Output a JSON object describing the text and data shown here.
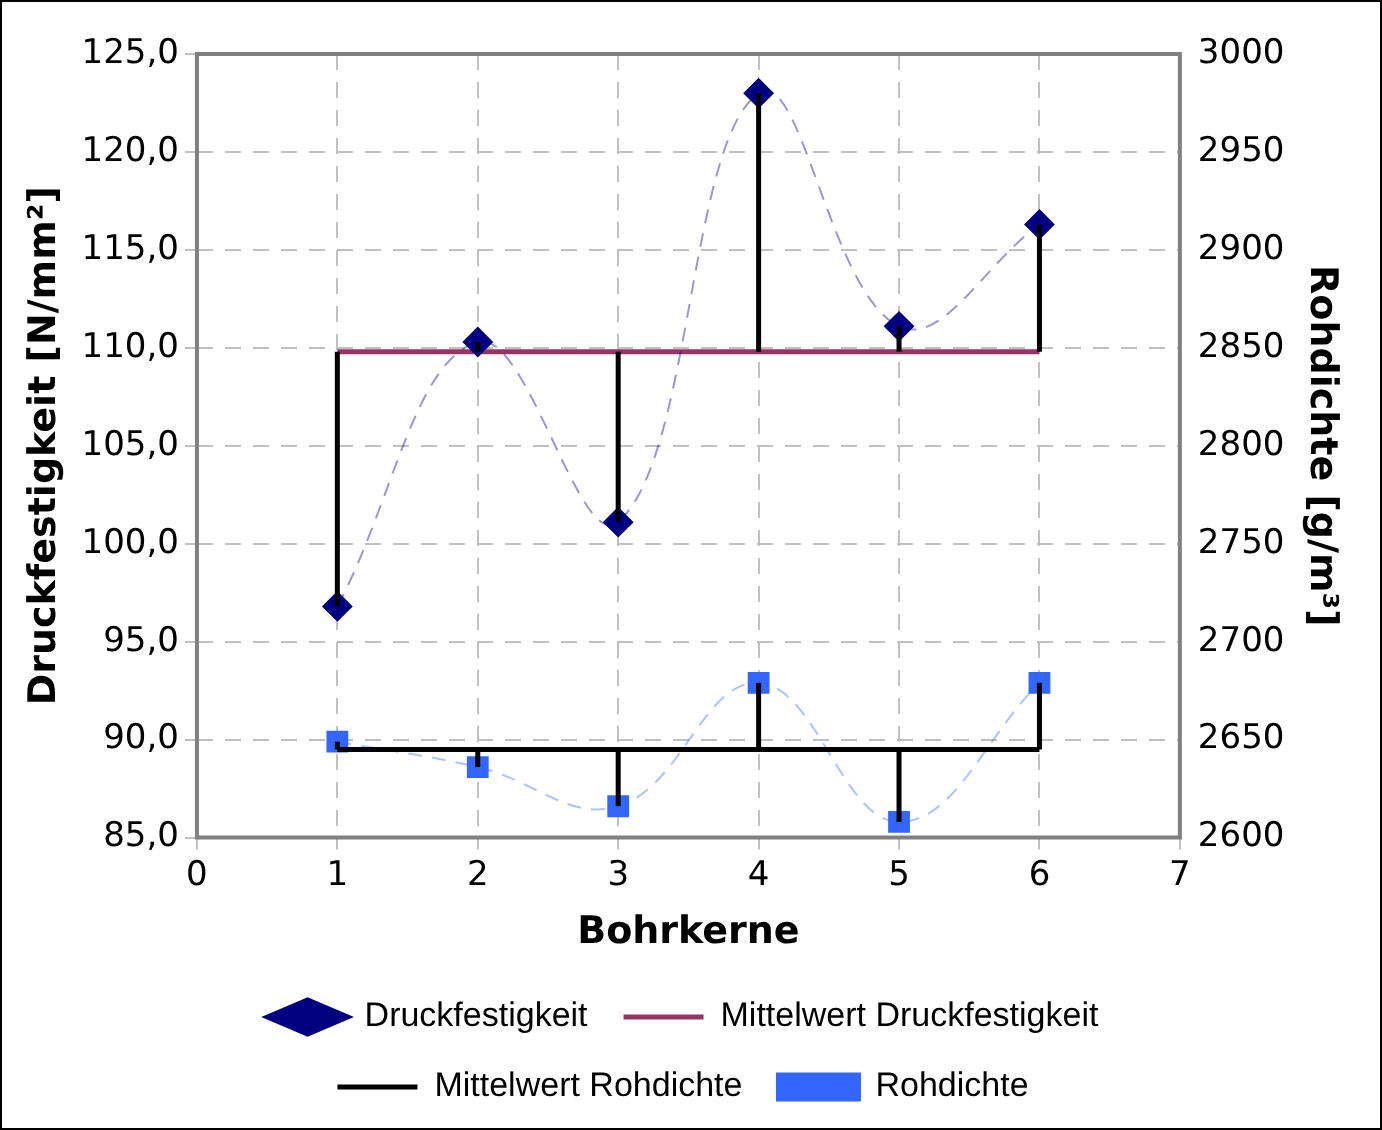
{
  "chart_data": {
    "type": "line",
    "xlabel": "Bohrkerne",
    "ylabel": "Druckfestigkeit [N/mm²]",
    "y2label": "Rohdichte [g/m³]",
    "x": [
      1,
      2,
      3,
      4,
      5,
      6
    ],
    "xlim": [
      0,
      7
    ],
    "xticks": [
      0,
      1,
      2,
      3,
      4,
      5,
      6,
      7
    ],
    "ylim": [
      85,
      125
    ],
    "yticks": [
      {
        "value": 85,
        "label": "85,0"
      },
      {
        "value": 90,
        "label": "90,0"
      },
      {
        "value": 95,
        "label": "95,0"
      },
      {
        "value": 100,
        "label": "100,0"
      },
      {
        "value": 105,
        "label": "105,0"
      },
      {
        "value": 110,
        "label": "110,0"
      },
      {
        "value": 115,
        "label": "115,0"
      },
      {
        "value": 120,
        "label": "120,0"
      },
      {
        "value": 125,
        "label": "125,0"
      }
    ],
    "y2lim": [
      2600,
      3000
    ],
    "y2ticks": [
      2600,
      2650,
      2700,
      2750,
      2800,
      2850,
      2900,
      2950,
      3000
    ],
    "grid": true,
    "legend": "bottom",
    "series": [
      {
        "name": "Druckfestigkeit",
        "color": "#000080",
        "values": [
          96.8,
          110.3,
          101.1,
          123.0,
          111.1,
          116.3
        ],
        "marker": "diamond",
        "line_style": "dashed"
      },
      {
        "name": "Mittelwert Druckfestigkeit",
        "color": "#993366",
        "values": [
          109.8,
          109.8,
          109.8,
          109.8,
          109.8,
          109.8
        ],
        "marker": "none",
        "line_style": "solid",
        "errors": [
          [
            96.8,
            109.8
          ],
          [
            109.8,
            110.3
          ],
          [
            101.1,
            109.8
          ],
          [
            109.8,
            123.0
          ],
          [
            109.8,
            111.1
          ],
          [
            109.8,
            116.3
          ]
        ]
      },
      {
        "name": "Mittelwert Rohdichte",
        "color": "#000000",
        "axis": "y2",
        "values": [
          2645,
          2645,
          2645,
          2645,
          2645,
          2645
        ],
        "marker": "none",
        "line_style": "solid",
        "errors": [
          [
            2645,
            2649
          ],
          [
            2636,
            2645
          ],
          [
            2616,
            2645
          ],
          [
            2645,
            2679
          ],
          [
            2608,
            2645
          ],
          [
            2645,
            2679
          ]
        ]
      },
      {
        "name": "Rohdichte",
        "color": "#3366ff",
        "axis": "y2",
        "values": [
          2649,
          2636,
          2616,
          2679,
          2608,
          2679
        ],
        "marker": "square",
        "line_style": "dashed"
      }
    ]
  }
}
